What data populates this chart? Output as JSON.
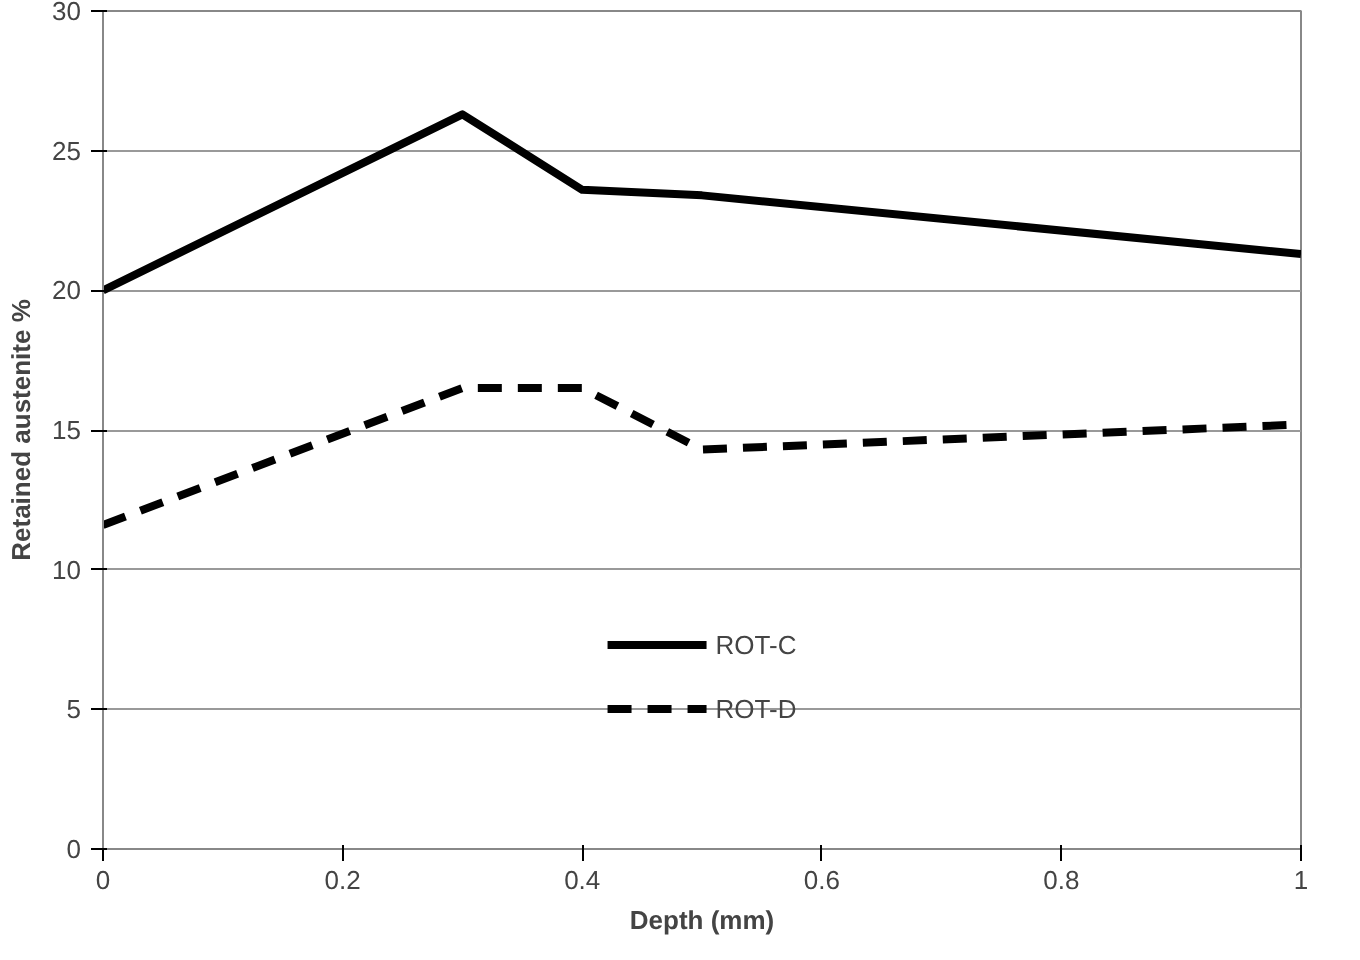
{
  "chart_data": {
    "type": "line",
    "xlabel": "Depth (mm)",
    "ylabel": "Retained austenite %",
    "x": [
      0,
      0.3,
      0.4,
      0.5,
      1
    ],
    "series": [
      {
        "name": "ROT-C",
        "color": "#000000",
        "line_style": "solid",
        "values": [
          20.0,
          26.3,
          23.6,
          23.4,
          21.3
        ]
      },
      {
        "name": "ROT-D",
        "color": "#000000",
        "line_style": "dashed",
        "values": [
          11.6,
          16.5,
          16.5,
          14.3,
          15.2
        ]
      }
    ],
    "xlim": [
      0,
      1
    ],
    "xticks": [
      0,
      0.2,
      0.4,
      0.6,
      0.8,
      1
    ],
    "ylim": [
      0,
      30
    ],
    "yticks": [
      0,
      5,
      10,
      15,
      20,
      25,
      30
    ],
    "grid": "y",
    "legend": "bottom"
  }
}
